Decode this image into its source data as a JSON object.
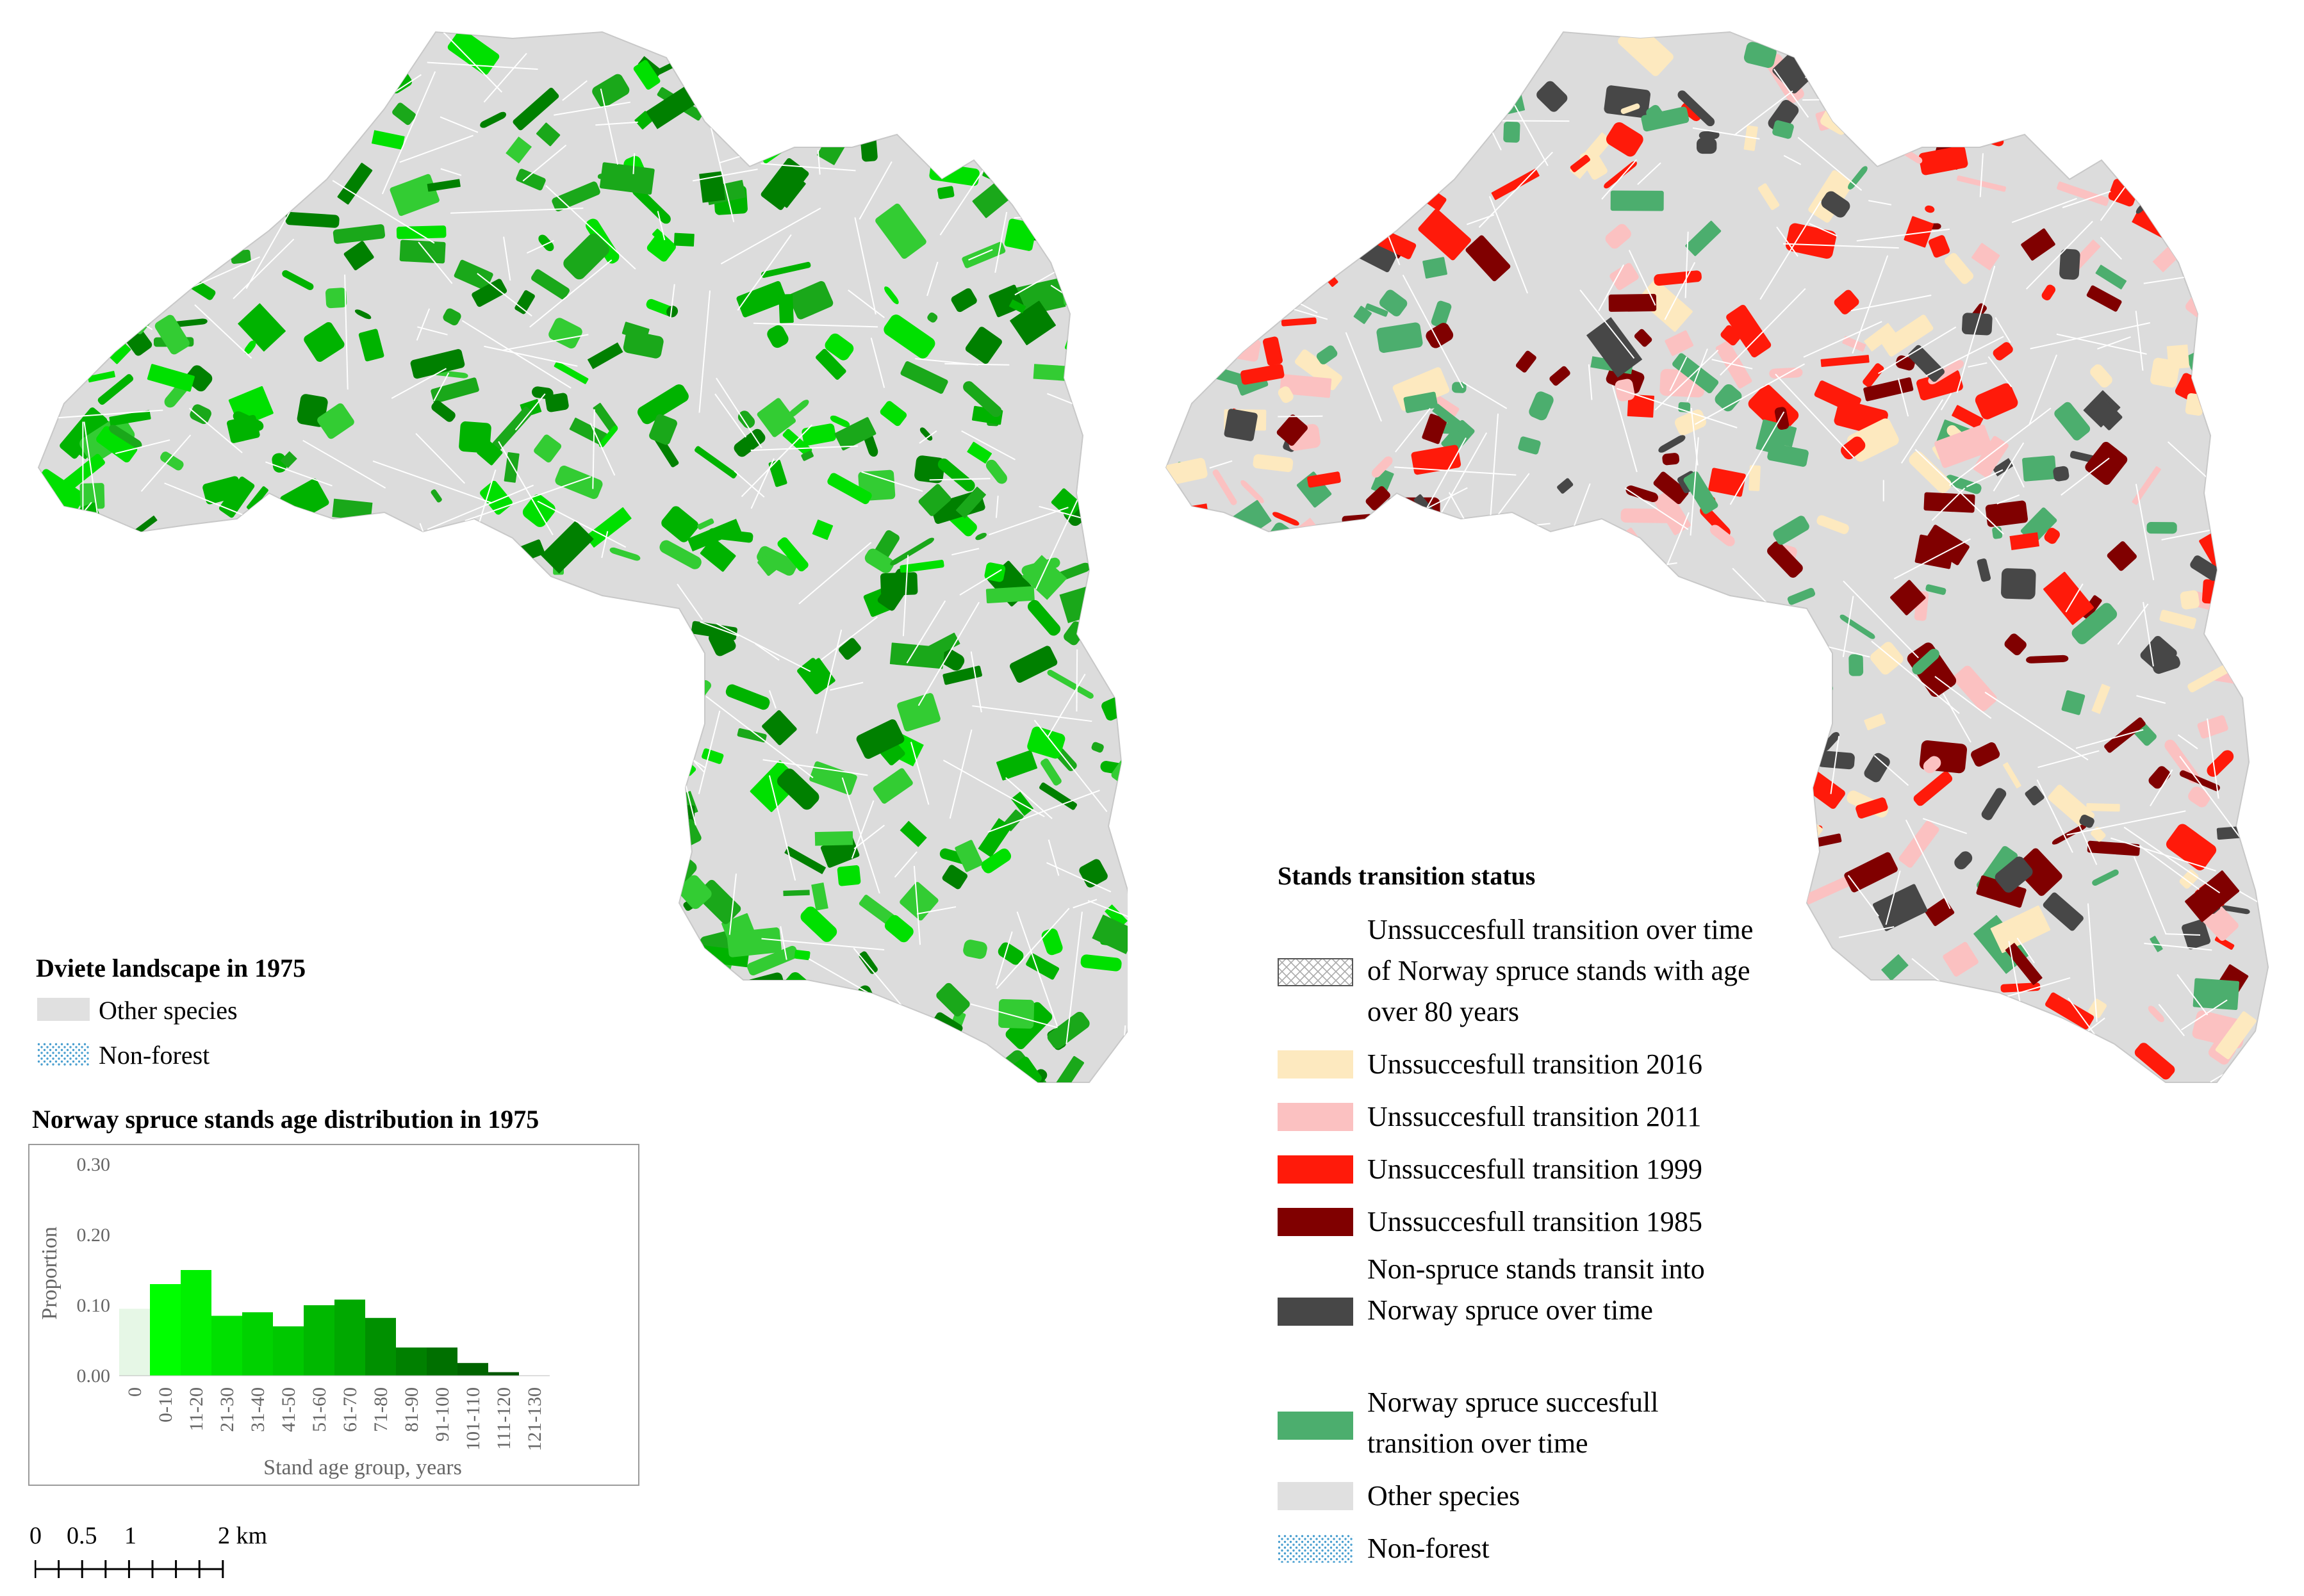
{
  "left_legend": {
    "title": "Dviete landscape in 1975",
    "items": [
      {
        "label": "Other species",
        "color": "#e0e0e0",
        "pattern": false
      },
      {
        "label": "Non-forest",
        "color": "#4a9fd0",
        "pattern": true
      }
    ]
  },
  "histogram_title": "Norway spruce stands age distribution in 1975",
  "chart_data": {
    "type": "bar",
    "title": "Norway spruce stands age distribution in 1975",
    "xlabel": "Stand age group,  years",
    "ylabel": "Proportion",
    "ylim": [
      0,
      0.3
    ],
    "yticks": [
      "0.30",
      "0.20",
      "0.10",
      "0.00"
    ],
    "categories": [
      "0",
      "0-10",
      "11-20",
      "21-30",
      "31-40",
      "41-50",
      "51-60",
      "61-70",
      "71-80",
      "81-90",
      "91-100",
      "101-110",
      "111-120",
      "121-130"
    ],
    "values": [
      0.095,
      0.13,
      0.15,
      0.085,
      0.09,
      0.07,
      0.1,
      0.108,
      0.082,
      0.04,
      0.04,
      0.018,
      0.005,
      0.0
    ],
    "colors": [
      "#e6f7e6",
      "#00ff00",
      "#00f000",
      "#00e000",
      "#00d200",
      "#00c800",
      "#00b800",
      "#00a800",
      "#009000",
      "#008000",
      "#007000",
      "#006400",
      "#005600",
      "#004800"
    ]
  },
  "scale_bar": {
    "labels": [
      "0",
      "0.5",
      "1",
      "2 km"
    ]
  },
  "right_legend": {
    "title": "Stands transition status",
    "items": [
      {
        "label": "Unssuccesfull transition over time of Norway spruce stands with age over 80 years",
        "color": "#ffffff",
        "hatch": true
      },
      {
        "label": "Unssuccesfull transition 2016",
        "color": "#fde9bf",
        "hatch": false
      },
      {
        "label": "Unssuccesfull transition 2011",
        "color": "#fbc1c1",
        "hatch": false
      },
      {
        "label": "Unssuccesfull transition 1999",
        "color": "#ff1a0a",
        "hatch": false
      },
      {
        "label": "Unssuccesfull transition 1985",
        "color": "#800000",
        "hatch": false
      },
      {
        "label": "Non-spruce stands transit into Norway spruce over time",
        "color": "#474747",
        "hatch": false
      },
      {
        "label": "Norway spruce succesfull transition over time",
        "color": "#4cae6e",
        "hatch": false
      },
      {
        "label": "Other species",
        "color": "#e0e0e0",
        "hatch": false
      },
      {
        "label": "Non-forest",
        "color": "#4a9fd0",
        "pattern": true
      }
    ]
  },
  "maps": {
    "left": {
      "base_color": "#d9d9d9",
      "patch_colors": [
        "#33cc33",
        "#00b300",
        "#1aa81a",
        "#008000",
        "#00e000"
      ]
    },
    "right": {
      "base_color": "#d9d9d9",
      "patch_colors": [
        "#4cae6e",
        "#800000",
        "#474747",
        "#ff1a0a",
        "#fbc1c1",
        "#fde9bf"
      ]
    }
  }
}
